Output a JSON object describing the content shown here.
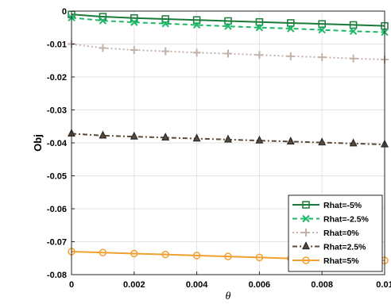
{
  "chart_data": {
    "type": "line",
    "xlabel": "θ",
    "ylabel": "Obj",
    "xlim": [
      0,
      0.01
    ],
    "ylim": [
      -0.08,
      0
    ],
    "x_ticks": [
      0,
      0.002,
      0.004,
      0.006,
      0.008,
      0.01
    ],
    "x_tick_labels": [
      "0",
      "0.002",
      "0.004",
      "0.006",
      "0.008",
      "0.01"
    ],
    "y_ticks": [
      0,
      -0.01,
      -0.02,
      -0.03,
      -0.04,
      -0.05,
      -0.06,
      -0.07,
      -0.08
    ],
    "y_tick_labels": [
      "0",
      "-0.01",
      "-0.02",
      "-0.03",
      "-0.04",
      "-0.05",
      "-0.06",
      "-0.07",
      "-0.08"
    ],
    "grid": true,
    "legend_position": "lower-right",
    "x": [
      0,
      0.001,
      0.002,
      0.003,
      0.004,
      0.005,
      0.006,
      0.007,
      0.008,
      0.009,
      0.01
    ],
    "series": [
      {
        "name": "Rhat=-5%",
        "color": "#1a7a3a",
        "line_style": "solid",
        "marker": "square",
        "values": [
          -0.001,
          -0.0017,
          -0.0021,
          -0.0024,
          -0.0027,
          -0.003,
          -0.0033,
          -0.0036,
          -0.0039,
          -0.0042,
          -0.0045
        ]
      },
      {
        "name": "Rhat=-2.5%",
        "color": "#1fb86a",
        "line_style": "dashed",
        "marker": "x",
        "values": [
          -0.002,
          -0.0029,
          -0.0034,
          -0.0038,
          -0.0042,
          -0.0046,
          -0.005,
          -0.0053,
          -0.0057,
          -0.0061,
          -0.0064
        ]
      },
      {
        "name": "Rhat=0%",
        "color": "#c4b2aa",
        "line_style": "dotted",
        "marker": "plus",
        "values": [
          -0.01,
          -0.0112,
          -0.0118,
          -0.0122,
          -0.0126,
          -0.0129,
          -0.0133,
          -0.0137,
          -0.014,
          -0.0144,
          -0.0147
        ]
      },
      {
        "name": "Rhat=2.5%",
        "color": "#5a4a3a",
        "line_style": "dashdot",
        "marker": "triangle",
        "values": [
          -0.0372,
          -0.0378,
          -0.0381,
          -0.0384,
          -0.0387,
          -0.039,
          -0.0393,
          -0.0396,
          -0.0399,
          -0.0402,
          -0.0405
        ]
      },
      {
        "name": "Rhat=5%",
        "color": "#f0a030",
        "line_style": "solid",
        "marker": "circle",
        "values": [
          -0.073,
          -0.0733,
          -0.0736,
          -0.0739,
          -0.0742,
          -0.0745,
          -0.0748,
          -0.0751,
          -0.0753,
          -0.0755,
          -0.0757
        ]
      }
    ]
  }
}
